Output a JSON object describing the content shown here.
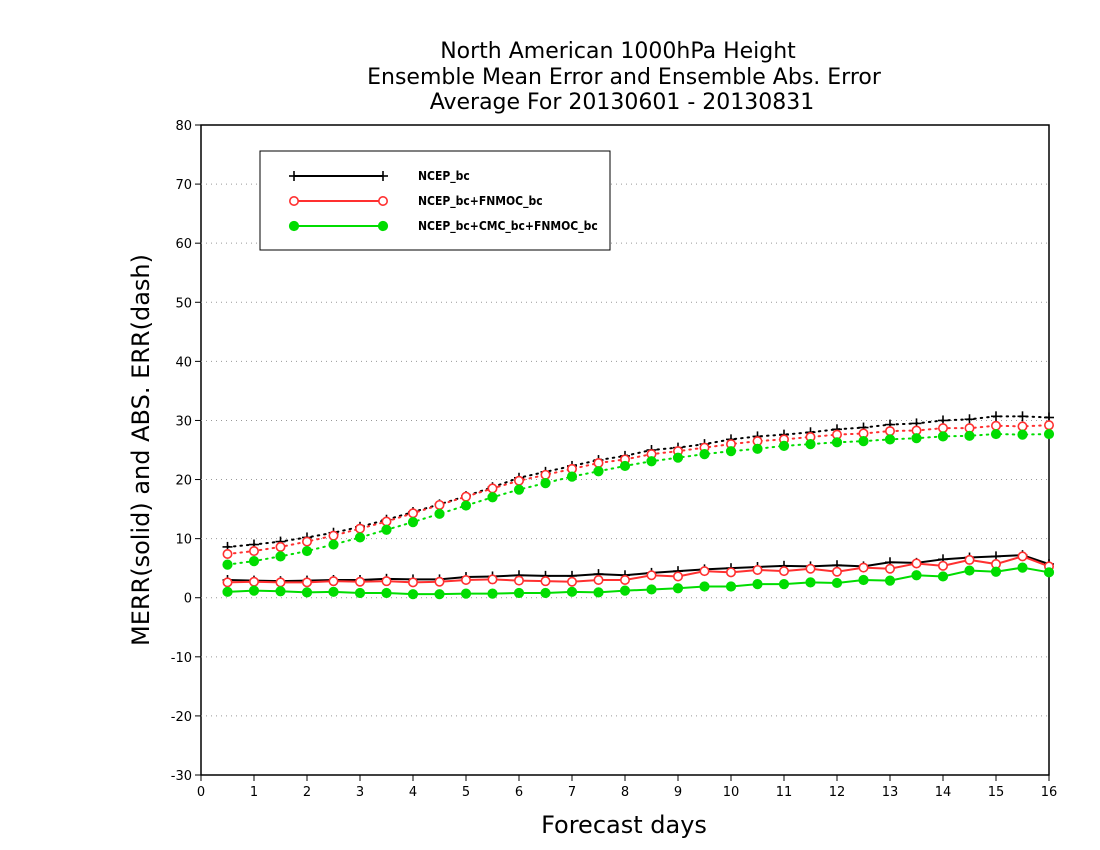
{
  "chart_data": {
    "type": "line",
    "title": [
      "North American 1000hPa Height",
      "Ensemble Mean Error and Ensemble Abs. Error",
      "Average For 20130601 - 20130831"
    ],
    "xlabel": "Forecast days",
    "ylabel": "MERR(solid) and ABS. ERR(dash)",
    "xlim": [
      0,
      16
    ],
    "ylim": [
      -30,
      80
    ],
    "xticks": [
      0,
      1,
      2,
      3,
      4,
      5,
      6,
      7,
      8,
      9,
      10,
      11,
      12,
      13,
      14,
      15,
      16
    ],
    "xtick_labels": [
      "0",
      "1",
      "2",
      "3",
      "4",
      "5",
      "6",
      "7",
      "8",
      "9",
      "10",
      "11",
      "12",
      "13",
      "14",
      "15",
      "16"
    ],
    "yticks": [
      -30,
      -20,
      -10,
      0,
      10,
      20,
      30,
      40,
      50,
      60,
      70,
      80
    ],
    "ytick_labels": [
      "-30",
      "-20",
      "-10",
      "0",
      "10",
      "20",
      "30",
      "40",
      "50",
      "60",
      "70",
      "80"
    ],
    "grid": "horizontal dotted",
    "legend_position": "top-left",
    "x": [
      0.5,
      1,
      1.5,
      2,
      2.5,
      3,
      3.5,
      4,
      4.5,
      5,
      5.5,
      6,
      6.5,
      7,
      7.5,
      8,
      8.5,
      9,
      9.5,
      10,
      10.5,
      11,
      11.5,
      12,
      12.5,
      13,
      13.5,
      14,
      14.5,
      15,
      15.5,
      16
    ],
    "series": [
      {
        "name": "NCEP_bc",
        "color": "#000000",
        "marker": "plus",
        "merr": [
          3.0,
          2.9,
          2.8,
          2.9,
          3.0,
          3.0,
          3.2,
          3.1,
          3.1,
          3.5,
          3.6,
          3.8,
          3.7,
          3.7,
          4.0,
          3.8,
          4.2,
          4.5,
          4.8,
          5.0,
          5.2,
          5.4,
          5.3,
          5.5,
          5.3,
          6.0,
          5.9,
          6.5,
          6.8,
          7.0,
          7.2,
          5.7
        ],
        "abs_err": [
          8.6,
          9.0,
          9.5,
          10.2,
          11.0,
          12.0,
          13.2,
          14.5,
          15.8,
          17.2,
          18.7,
          20.3,
          21.3,
          22.3,
          23.3,
          24.0,
          25.0,
          25.4,
          26.0,
          26.8,
          27.3,
          27.6,
          28.0,
          28.5,
          28.8,
          29.3,
          29.5,
          30.0,
          30.2,
          30.7,
          30.7,
          30.5
        ]
      },
      {
        "name": "NCEP_bc+FNMOC_bc",
        "color": "#ff3030",
        "marker": "open-circle",
        "merr": [
          2.6,
          2.7,
          2.6,
          2.6,
          2.8,
          2.7,
          2.8,
          2.6,
          2.7,
          3.0,
          3.1,
          2.9,
          2.8,
          2.7,
          3.0,
          3.0,
          3.8,
          3.6,
          4.5,
          4.3,
          4.7,
          4.5,
          4.9,
          4.4,
          5.1,
          4.9,
          5.8,
          5.4,
          6.4,
          5.7,
          7.0,
          5.3
        ],
        "abs_err": [
          7.4,
          7.9,
          8.6,
          9.5,
          10.5,
          11.7,
          12.9,
          14.3,
          15.7,
          17.1,
          18.5,
          19.8,
          20.8,
          21.8,
          22.8,
          23.4,
          24.3,
          24.8,
          25.4,
          26.0,
          26.5,
          26.8,
          27.2,
          27.6,
          27.8,
          28.2,
          28.3,
          28.7,
          28.7,
          29.1,
          29.0,
          29.2
        ]
      },
      {
        "name": "NCEP_bc+CMC_bc+FNMOC_bc",
        "color": "#00dd00",
        "marker": "filled-circle",
        "merr": [
          1.0,
          1.2,
          1.1,
          0.9,
          1.0,
          0.8,
          0.8,
          0.6,
          0.6,
          0.7,
          0.7,
          0.8,
          0.8,
          1.0,
          0.9,
          1.2,
          1.4,
          1.6,
          1.9,
          1.9,
          2.3,
          2.3,
          2.6,
          2.5,
          3.0,
          2.9,
          3.8,
          3.6,
          4.6,
          4.4,
          5.1,
          4.3
        ],
        "abs_err": [
          5.6,
          6.2,
          7.0,
          7.9,
          9.0,
          10.2,
          11.5,
          12.8,
          14.2,
          15.6,
          17.0,
          18.3,
          19.4,
          20.5,
          21.4,
          22.3,
          23.1,
          23.7,
          24.3,
          24.8,
          25.2,
          25.7,
          26.0,
          26.3,
          26.5,
          26.8,
          27.0,
          27.3,
          27.4,
          27.7,
          27.6,
          27.7
        ]
      }
    ]
  }
}
